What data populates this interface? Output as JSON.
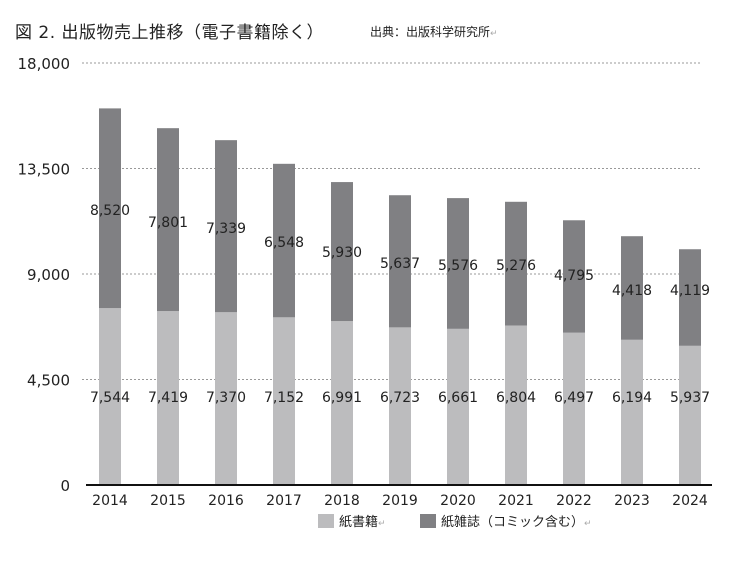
{
  "title": "図 2.  出版物売上推移（電子書籍除く）",
  "source": "出典：出版科学研究所",
  "chart_data": {
    "type": "bar",
    "stacked": true,
    "categories": [
      "2014",
      "2015",
      "2016",
      "2017",
      "2018",
      "2019",
      "2020",
      "2021",
      "2022",
      "2023",
      "2024"
    ],
    "series": [
      {
        "name": "紙書籍",
        "color": "#bcbcbe",
        "values": [
          7544,
          7419,
          7370,
          7152,
          6991,
          6723,
          6661,
          6804,
          6497,
          6194,
          5937
        ]
      },
      {
        "name": "紙雑誌（コミック含む）",
        "color": "#808083",
        "values": [
          8520,
          7801,
          7339,
          6548,
          5930,
          5637,
          5576,
          5276,
          4795,
          4418,
          4119
        ]
      }
    ],
    "ylim": [
      0,
      18000
    ],
    "yticks": [
      0,
      4500,
      9000,
      13500,
      18000
    ],
    "ytick_labels": [
      "0",
      "4,500",
      "9,000",
      "13,500",
      "18,000"
    ],
    "grid": true,
    "legend_position": "bottom"
  }
}
